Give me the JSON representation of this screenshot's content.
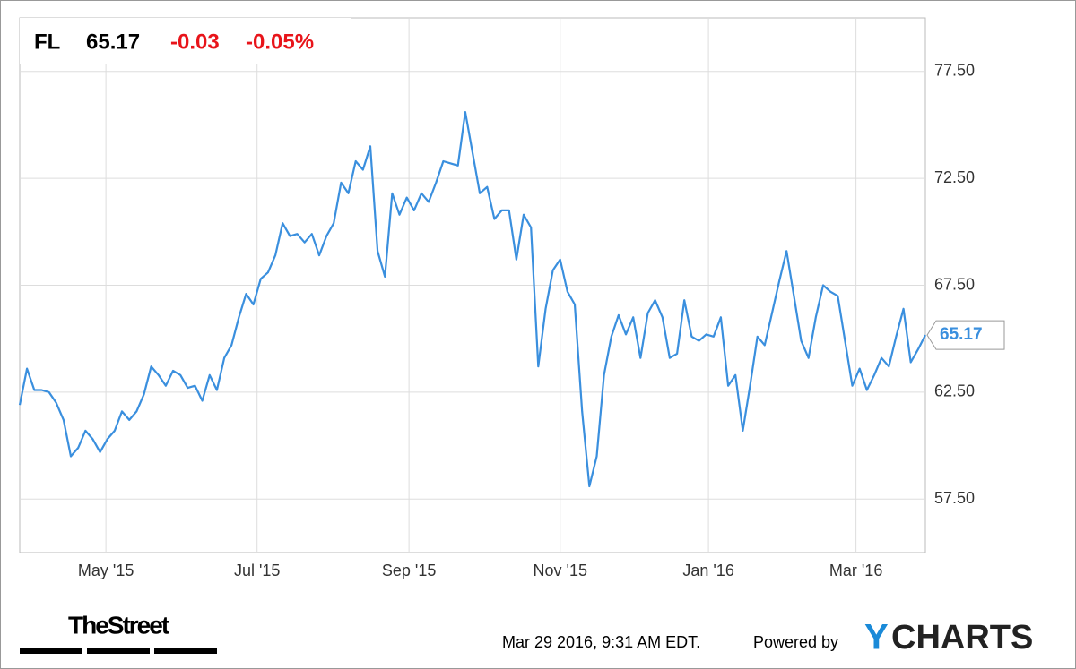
{
  "header": {
    "ticker": "FL",
    "price": "65.17",
    "change": "-0.03",
    "change_pct": "-0.05%"
  },
  "footer": {
    "brand": "TheStreet",
    "timestamp": "Mar 29 2016, 9:31 AM EDT.",
    "powered": "Powered by",
    "logo_y": "Y",
    "logo_rest": "CHARTS"
  },
  "chart_data": {
    "type": "line",
    "color": "#3a8fde",
    "grid": true,
    "values": [
      61.9,
      63.6,
      62.6,
      62.6,
      62.5,
      62.0,
      61.2,
      59.5,
      59.9,
      60.7,
      60.3,
      59.7,
      60.3,
      60.7,
      61.6,
      61.2,
      61.6,
      62.4,
      63.7,
      63.3,
      62.8,
      63.5,
      63.3,
      62.7,
      62.8,
      62.1,
      63.3,
      62.6,
      64.1,
      64.7,
      66.0,
      67.1,
      66.6,
      67.8,
      68.1,
      68.9,
      70.4,
      69.8,
      69.9,
      69.5,
      69.9,
      68.9,
      69.8,
      70.4,
      72.3,
      71.8,
      73.3,
      72.9,
      74.0,
      69.1,
      67.9,
      71.8,
      70.8,
      71.6,
      71.0,
      71.8,
      71.4,
      72.3,
      73.3,
      73.2,
      73.1,
      75.6,
      73.7,
      71.8,
      72.1,
      70.6,
      71.0,
      71.0,
      68.7,
      70.8,
      70.2,
      63.7,
      66.4,
      68.2,
      68.7,
      67.2,
      66.6,
      61.6,
      58.1,
      59.5,
      63.3,
      65.1,
      66.1,
      65.2,
      66.0,
      64.1,
      66.2,
      66.8,
      66.0,
      64.1,
      64.3,
      66.8,
      65.1,
      64.9,
      65.2,
      65.1,
      66.0,
      62.8,
      63.3,
      60.7,
      62.8,
      65.1,
      64.7,
      66.2,
      67.7,
      69.1,
      67.0,
      64.9,
      64.1,
      66.0,
      67.5,
      67.2,
      67.0,
      64.9,
      62.8,
      63.6,
      62.6,
      63.3,
      64.1,
      63.7,
      65.1,
      66.4,
      63.9,
      64.5,
      65.17
    ],
    "xlim": [
      0,
      124
    ],
    "xticks": [
      {
        "value": 11.8,
        "label": "May '15"
      },
      {
        "value": 32.5,
        "label": "Jul '15"
      },
      {
        "value": 53.3,
        "label": "Sep '15"
      },
      {
        "value": 74.0,
        "label": "Nov '15"
      },
      {
        "value": 94.3,
        "label": "Jan '16"
      },
      {
        "value": 114.5,
        "label": "Mar '16"
      }
    ],
    "ylim": [
      55,
      80
    ],
    "yticks": [
      {
        "value": 57.5,
        "label": "57.50"
      },
      {
        "value": 62.5,
        "label": "62.50"
      },
      {
        "value": 67.5,
        "label": "67.50"
      },
      {
        "value": 72.5,
        "label": "72.50"
      },
      {
        "value": 77.5,
        "label": "77.50"
      }
    ]
  }
}
